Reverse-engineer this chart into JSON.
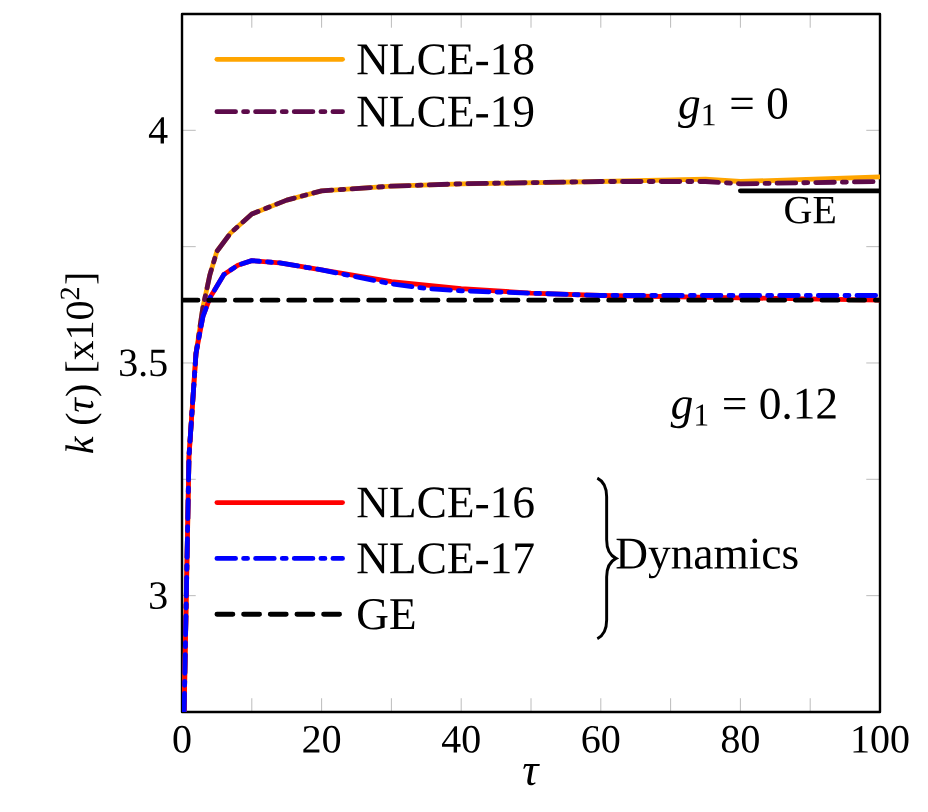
{
  "chart_data": {
    "type": "line",
    "xlabel": "*τ*",
    "ylabel": "*k* (*τ*) [x10$^{2}$]",
    "xlim": [
      0,
      100
    ],
    "ylim": [
      2.75,
      4.25
    ],
    "xticks": [
      0,
      {
        "value": 10,
        "label": null
      },
      20,
      {
        "value": 30,
        "label": null
      },
      40,
      {
        "value": 50,
        "label": null
      },
      60,
      {
        "value": 70,
        "label": null
      },
      80,
      {
        "value": 90,
        "label": null
      },
      100
    ],
    "yticks": [
      3,
      {
        "value": 3.25,
        "label": null
      },
      3.5,
      {
        "value": 3.75,
        "label": null
      },
      4
    ],
    "grid": false,
    "legend": "top left",
    "marker": "none",
    "series": [
      {
        "name": "NLCE-18",
        "color": "#ffa500",
        "line_style": "solid",
        "x": [
          0.3,
          1,
          2,
          3,
          4,
          5,
          7,
          10,
          15,
          20,
          30,
          40,
          60,
          75,
          80,
          100
        ],
        "values": [
          2.75,
          3.3,
          3.52,
          3.62,
          3.69,
          3.74,
          3.78,
          3.82,
          3.85,
          3.87,
          3.88,
          3.885,
          3.89,
          3.895,
          3.89,
          3.9
        ]
      },
      {
        "name": "NLCE-19",
        "color": "#5c0a4a",
        "line_style": "dashdot",
        "x": [
          0.3,
          1,
          2,
          3,
          4,
          5,
          7,
          10,
          15,
          20,
          30,
          40,
          60,
          75,
          80,
          100
        ],
        "values": [
          2.75,
          3.3,
          3.52,
          3.62,
          3.69,
          3.74,
          3.78,
          3.82,
          3.85,
          3.87,
          3.88,
          3.885,
          3.89,
          3.89,
          3.885,
          3.89
        ]
      },
      {
        "name": "NLCE-16",
        "color": "#ff0000",
        "line_style": "solid",
        "x": [
          0.3,
          1,
          2,
          3,
          4,
          6,
          8,
          10,
          14,
          20,
          30,
          40,
          50,
          60,
          80,
          100
        ],
        "values": [
          2.75,
          3.3,
          3.52,
          3.6,
          3.64,
          3.69,
          3.71,
          3.72,
          3.715,
          3.7,
          3.675,
          3.66,
          3.65,
          3.645,
          3.64,
          3.635
        ]
      },
      {
        "name": "NLCE-17",
        "color": "#0000ff",
        "line_style": "dashdot",
        "x": [
          0.3,
          1,
          2,
          3,
          4,
          6,
          8,
          10,
          14,
          20,
          30,
          35,
          40,
          50,
          60,
          80,
          100
        ],
        "values": [
          2.75,
          3.3,
          3.52,
          3.6,
          3.64,
          3.69,
          3.71,
          3.72,
          3.715,
          3.7,
          3.67,
          3.66,
          3.655,
          3.65,
          3.645,
          3.645,
          3.645
        ]
      },
      {
        "name": "GE",
        "color": "#000000",
        "line_style": "dashed",
        "x": [
          0,
          100
        ],
        "values": [
          3.635,
          3.635
        ]
      },
      {
        "name": "GE",
        "color": "#000000",
        "line_style": "solid",
        "x": [
          80,
          100
        ],
        "values": [
          3.87,
          3.87
        ]
      }
    ],
    "annotations": [
      "*g*$_{1}$ = 0",
      "*g*$_{1}$ = 0.12",
      "Dynamics"
    ]
  }
}
